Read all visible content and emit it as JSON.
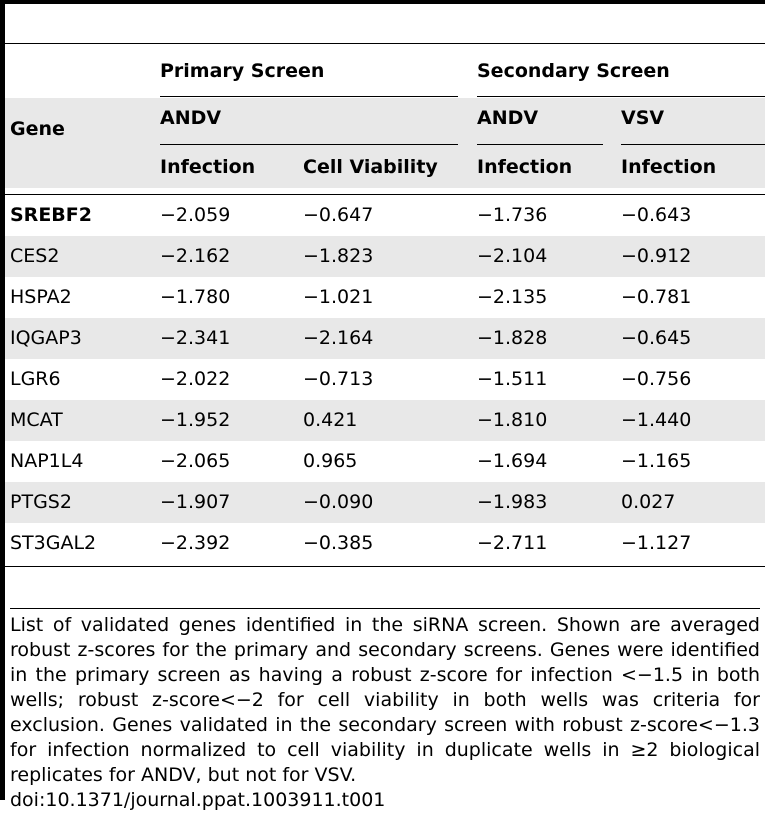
{
  "table": {
    "headers": {
      "gene": "Gene",
      "primary_screen": "Primary Screen",
      "secondary_screen": "Secondary Screen",
      "primary_virus": "ANDV",
      "secondary_virus_1": "ANDV",
      "secondary_virus_2": "VSV",
      "col_infection_1": "Infection",
      "col_cell_viability": "Cell Viability",
      "col_infection_2": "Infection",
      "col_infection_3": "Infection"
    },
    "rows": [
      {
        "gene": "SREBF2",
        "p_infection": "−2.059",
        "p_viability": "−0.647",
        "s_andv": "−1.736",
        "s_vsv": "−0.643"
      },
      {
        "gene": "CES2",
        "p_infection": "−2.162",
        "p_viability": "−1.823",
        "s_andv": "−2.104",
        "s_vsv": "−0.912"
      },
      {
        "gene": "HSPA2",
        "p_infection": "−1.780",
        "p_viability": "−1.021",
        "s_andv": "−2.135",
        "s_vsv": "−0.781"
      },
      {
        "gene": "IQGAP3",
        "p_infection": "−2.341",
        "p_viability": "−2.164",
        "s_andv": "−1.828",
        "s_vsv": "−0.645"
      },
      {
        "gene": "LGR6",
        "p_infection": "−2.022",
        "p_viability": "−0.713",
        "s_andv": "−1.511",
        "s_vsv": "−0.756"
      },
      {
        "gene": "MCAT",
        "p_infection": "−1.952",
        "p_viability": "0.421",
        "s_andv": "−1.810",
        "s_vsv": "−1.440"
      },
      {
        "gene": "NAP1L4",
        "p_infection": "−2.065",
        "p_viability": "0.965",
        "s_andv": "−1.694",
        "s_vsv": "−1.165"
      },
      {
        "gene": "PTGS2",
        "p_infection": "−1.907",
        "p_viability": "−0.090",
        "s_andv": "−1.983",
        "s_vsv": "0.027"
      },
      {
        "gene": "ST3GAL2",
        "p_infection": "−2.392",
        "p_viability": "−0.385",
        "s_andv": "−2.711",
        "s_vsv": "−1.127"
      }
    ]
  },
  "caption": "List of validated genes identified in the siRNA screen. Shown are averaged robust z-scores for the primary and secondary screens. Genes were identified in the primary screen as having a robust z-score for infection <−1.5 in both wells; robust z-score<−2 for cell viability in both wells was criteria for exclusion. Genes validated in the secondary screen with robust z-score<−1.3 for infection normalized to cell viability in duplicate wells in ≥2 biological replicates for ANDV, but not for VSV.",
  "doi": "doi:10.1371/journal.ppat.1003911.t001"
}
